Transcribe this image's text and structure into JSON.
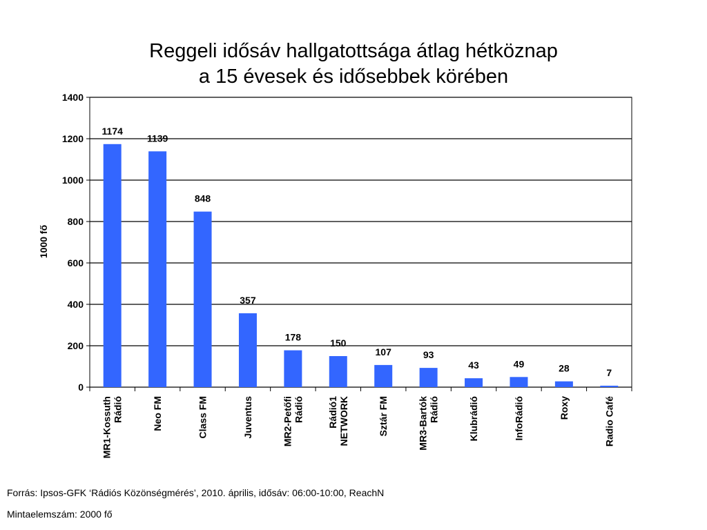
{
  "chart_data": {
    "type": "bar",
    "title": [
      "Reggeli idősáv hallgatottsága átlag hétköznap",
      "a 15 évesek és idősebbek körében"
    ],
    "ylabel": "1000 fő",
    "ylim": [
      0,
      1400
    ],
    "yticks": [
      0,
      200,
      400,
      600,
      800,
      1000,
      1200,
      1400
    ],
    "grid": true,
    "legend": "none",
    "categories": [
      [
        "MR1-Kossuth",
        "Rádió"
      ],
      [
        "Neo FM"
      ],
      [
        "Class FM"
      ],
      [
        "Juventus"
      ],
      [
        "MR2-Petőfi",
        "Rádió"
      ],
      [
        "Rádió1",
        "NETWORK"
      ],
      [
        "Sztár FM"
      ],
      [
        "MR3-Bartók",
        "Rádió"
      ],
      [
        "Klubrádió"
      ],
      [
        "InfoRádió"
      ],
      [
        "Roxy"
      ],
      [
        "Radio Café"
      ]
    ],
    "values": [
      1174,
      1139,
      848,
      357,
      178,
      150,
      107,
      93,
      43,
      49,
      28,
      7
    ],
    "bar_color": "#3366ff"
  },
  "footer": {
    "source": "Forrás: Ipsos-GFK ‘Rádiós Közönségmérés’, 2010. április, idősáv: 06:00-10:00, ReachN",
    "sample": "Mintaelemszám: 2000 fő"
  }
}
